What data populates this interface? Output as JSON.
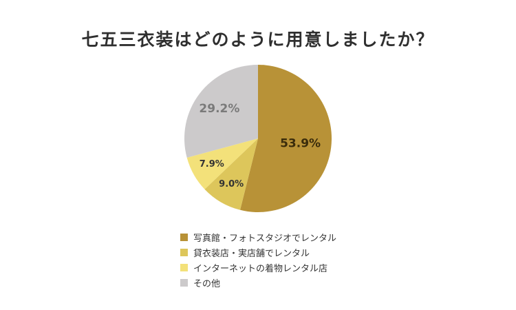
{
  "chart_data": {
    "type": "pie",
    "title": "七五三衣装はどのように用意しましたか？",
    "slices": [
      {
        "label": "写真館・フォトスタジオでレンタル",
        "value": 53.9,
        "display": "53.9%",
        "color": "#b89237",
        "text_color": "#3a2c0b",
        "label_size": 17
      },
      {
        "label": "貸衣装店・実店舗でレンタル",
        "value": 9.0,
        "display": "9.0%",
        "color": "#ddc65b",
        "text_color": "#333333",
        "label_size": 13
      },
      {
        "label": "インターネットの着物レンタル店",
        "value": 7.9,
        "display": "7.9%",
        "color": "#f3e17a",
        "text_color": "#333333",
        "label_size": 13
      },
      {
        "label": "その他",
        "value": 29.2,
        "display": "29.2%",
        "color": "#cccacb",
        "text_color": "#7a7a7a",
        "label_size": 17
      }
    ]
  }
}
